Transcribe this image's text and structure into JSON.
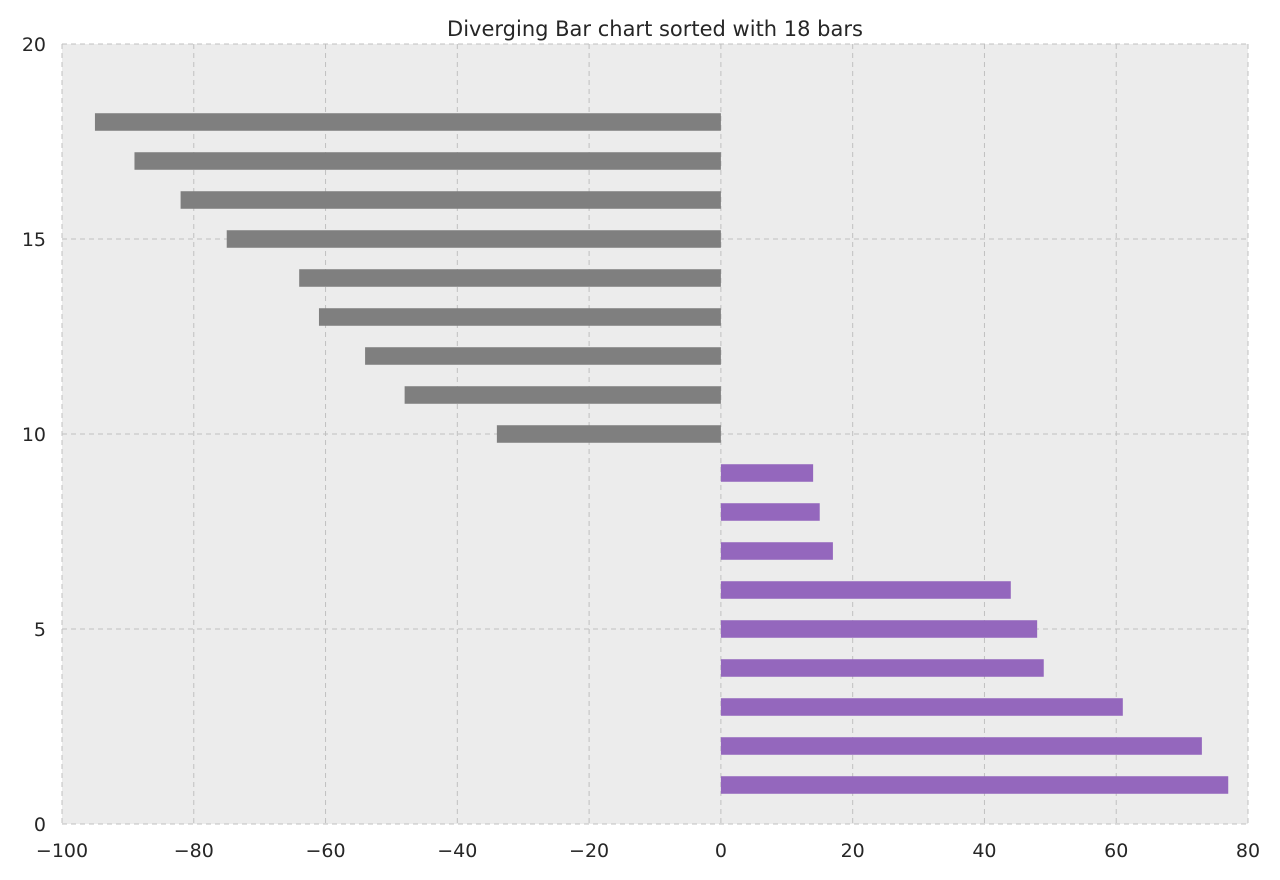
{
  "chart_data": {
    "type": "bar",
    "orientation": "horizontal",
    "title": "Diverging Bar chart sorted with 18 bars",
    "xlabel": "",
    "ylabel": "",
    "xlim": [
      -100,
      80
    ],
    "ylim": [
      0,
      20
    ],
    "x_ticks": [
      -100,
      -80,
      -60,
      -40,
      -20,
      0,
      20,
      40,
      60,
      80
    ],
    "x_tick_labels": [
      "−100",
      "−80",
      "−60",
      "−40",
      "−20",
      "0",
      "20",
      "40",
      "60",
      "80"
    ],
    "y_ticks": [
      0,
      5,
      10,
      15,
      20
    ],
    "y_tick_labels": [
      "0",
      "5",
      "10",
      "15",
      "20"
    ],
    "grid": true,
    "colors": {
      "positive": "#9467bd",
      "negative": "#7f7f7f",
      "background": "#ececec",
      "grid": "#c0c0c0"
    },
    "bars": [
      {
        "y": 1,
        "value": 77
      },
      {
        "y": 2,
        "value": 73
      },
      {
        "y": 3,
        "value": 61
      },
      {
        "y": 4,
        "value": 49
      },
      {
        "y": 5,
        "value": 48
      },
      {
        "y": 6,
        "value": 44
      },
      {
        "y": 7,
        "value": 17
      },
      {
        "y": 8,
        "value": 15
      },
      {
        "y": 9,
        "value": 14
      },
      {
        "y": 10,
        "value": -34
      },
      {
        "y": 11,
        "value": -48
      },
      {
        "y": 12,
        "value": -54
      },
      {
        "y": 13,
        "value": -61
      },
      {
        "y": 14,
        "value": -64
      },
      {
        "y": 15,
        "value": -75
      },
      {
        "y": 16,
        "value": -82
      },
      {
        "y": 17,
        "value": -89
      },
      {
        "y": 18,
        "value": -95
      }
    ]
  }
}
